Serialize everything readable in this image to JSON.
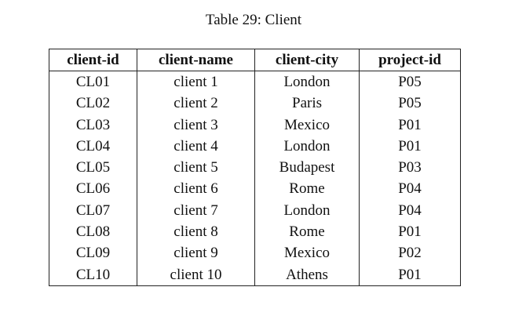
{
  "caption": "Table 29: Client",
  "table": {
    "headers": [
      "client-id",
      "client-name",
      "client-city",
      "project-id"
    ],
    "rows": [
      [
        "CL01",
        "client 1",
        "London",
        "P05"
      ],
      [
        "CL02",
        "client 2",
        "Paris",
        "P05"
      ],
      [
        "CL03",
        "client 3",
        "Mexico",
        "P01"
      ],
      [
        "CL04",
        "client 4",
        "London",
        "P01"
      ],
      [
        "CL05",
        "client 5",
        "Budapest",
        "P03"
      ],
      [
        "CL06",
        "client 6",
        "Rome",
        "P04"
      ],
      [
        "CL07",
        "client 7",
        "London",
        "P04"
      ],
      [
        "CL08",
        "client 8",
        "Rome",
        "P01"
      ],
      [
        "CL09",
        "client 9",
        "Mexico",
        "P02"
      ],
      [
        "CL10",
        "client 10",
        "Athens",
        "P01"
      ]
    ]
  }
}
